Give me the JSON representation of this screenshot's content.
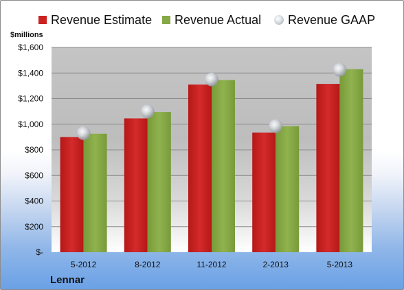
{
  "company": "Lennar",
  "chart_data": {
    "type": "bar",
    "ylabel": "$millions",
    "ylim": [
      0,
      1600
    ],
    "yticks": [
      0,
      200,
      400,
      600,
      800,
      1000,
      1200,
      1400,
      1600
    ],
    "ytick_labels": [
      "$-",
      "$200",
      "$400",
      "$600",
      "$800",
      "$1,000",
      "$1,200",
      "$1,400",
      "$1,600"
    ],
    "categories": [
      "5-2012",
      "8-2012",
      "11-2012",
      "2-2013",
      "5-2013"
    ],
    "series": [
      {
        "name": "Revenue Estimate",
        "kind": "bar",
        "color": "#cc2222",
        "values": [
          900,
          1045,
          1310,
          935,
          1315
        ]
      },
      {
        "name": "Revenue Actual",
        "kind": "bar",
        "color": "#86a846",
        "values": [
          925,
          1095,
          1345,
          985,
          1430
        ]
      },
      {
        "name": "Revenue GAAP",
        "kind": "marker",
        "color": "#b8bcc3",
        "values": [
          930,
          1100,
          1350,
          985,
          1425
        ]
      }
    ],
    "grid": true,
    "legend": "top"
  }
}
